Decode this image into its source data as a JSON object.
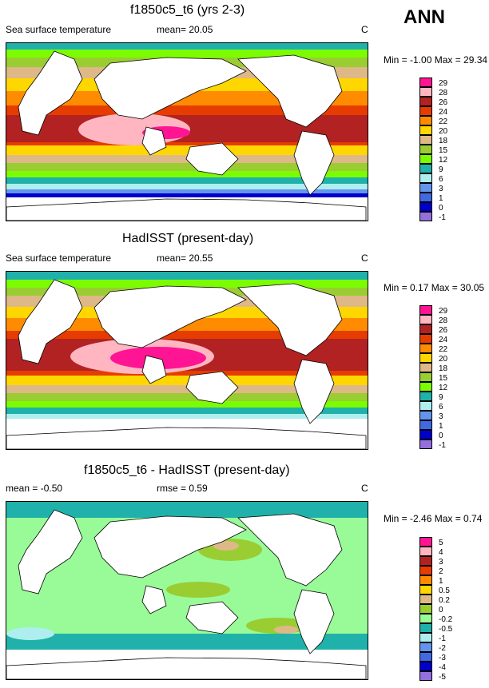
{
  "season": "ANN",
  "panels": [
    {
      "title": "f1850c5_t6 (yrs 2-3)",
      "variable": "Sea surface temperature",
      "stat_left": "Sea surface temperature",
      "stat_mid": "mean=  20.05",
      "units": "C",
      "minmax": "Min =  -1.00 Max =  29.34",
      "legend_labels": [
        "29",
        "28",
        "26",
        "24",
        "22",
        "20",
        "18",
        "15",
        "12",
        "9",
        "6",
        "3",
        "1",
        "0",
        "-1"
      ]
    },
    {
      "title": "HadISST (present-day)",
      "variable": "Sea surface temperature",
      "stat_left": "Sea surface temperature",
      "stat_mid": "mean=  20.55",
      "units": "C",
      "minmax": "Min =   0.17 Max =  30.05",
      "legend_labels": [
        "29",
        "28",
        "26",
        "24",
        "22",
        "20",
        "18",
        "15",
        "12",
        "9",
        "6",
        "3",
        "1",
        "0",
        "-1"
      ]
    },
    {
      "title": "f1850c5_t6 - HadISST (present-day)",
      "stat_left": "mean =  -0.50",
      "stat_mid": "rmse =   0.59",
      "units": "C",
      "minmax": "Min =  -2.46 Max =   0.74",
      "legend_labels": [
        "5",
        "4",
        "3",
        "2",
        "1",
        "0.5",
        "0.2",
        "0",
        "-0.2",
        "-0.5",
        "-1",
        "-2",
        "-3",
        "-4",
        "-5"
      ]
    }
  ],
  "colors": {
    "abs_scale": [
      "#ff1493",
      "#ffb6c1",
      "#b22222",
      "#e63c00",
      "#ff8c00",
      "#ffd700",
      "#deb887",
      "#9acd32",
      "#7cfc00",
      "#20b2aa",
      "#afeeee",
      "#6495ed",
      "#4169e1",
      "#0000cd",
      "#9370db"
    ],
    "diff_scale": [
      "#ff1493",
      "#ffb6c1",
      "#b22222",
      "#e63c00",
      "#ff8c00",
      "#ffd700",
      "#deb887",
      "#9acd32",
      "#98fb98",
      "#20b2aa",
      "#afeeee",
      "#6495ed",
      "#4169e1",
      "#0000cd",
      "#9370db"
    ]
  }
}
